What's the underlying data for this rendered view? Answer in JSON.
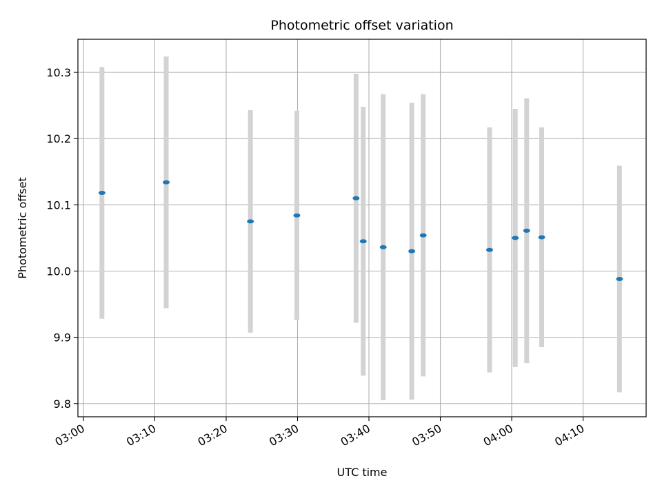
{
  "chart_data": {
    "type": "scatter",
    "title": "Photometric offset variation",
    "xlabel": "UTC time",
    "ylabel": "Photometric offset",
    "x_unit": "time (HH:MM)",
    "xlim": [
      "02:59:14",
      "04:18:50"
    ],
    "ylim": [
      9.78,
      10.35
    ],
    "x_ticks": [
      "03:00",
      "03:10",
      "03:20",
      "03:30",
      "03:40",
      "03:50",
      "04:00",
      "04:10"
    ],
    "y_ticks": [
      "9.8",
      "9.9",
      "10.0",
      "10.1",
      "10.2",
      "10.3"
    ],
    "grid": true,
    "series": [
      {
        "marker_color": "#1f77b4",
        "errorbar_color": "#d3d3d3",
        "points": [
          {
            "x": "03:02:36",
            "y": 10.118,
            "err": 0.19
          },
          {
            "x": "03:11:36",
            "y": 10.134,
            "err": 0.19
          },
          {
            "x": "03:23:24",
            "y": 10.075,
            "err": 0.168
          },
          {
            "x": "03:29:54",
            "y": 10.084,
            "err": 0.158
          },
          {
            "x": "03:38:12",
            "y": 10.11,
            "err": 0.188
          },
          {
            "x": "03:39:12",
            "y": 10.045,
            "err": 0.203
          },
          {
            "x": "03:42:00",
            "y": 10.036,
            "err": 0.231
          },
          {
            "x": "03:46:00",
            "y": 10.03,
            "err": 0.224
          },
          {
            "x": "03:47:36",
            "y": 10.054,
            "err": 0.213
          },
          {
            "x": "03:56:54",
            "y": 10.032,
            "err": 0.185
          },
          {
            "x": "04:00:30",
            "y": 10.05,
            "err": 0.195
          },
          {
            "x": "04:02:06",
            "y": 10.061,
            "err": 0.2
          },
          {
            "x": "04:04:12",
            "y": 10.051,
            "err": 0.166
          },
          {
            "x": "04:15:06",
            "y": 9.988,
            "err": 0.171
          }
        ]
      }
    ]
  }
}
